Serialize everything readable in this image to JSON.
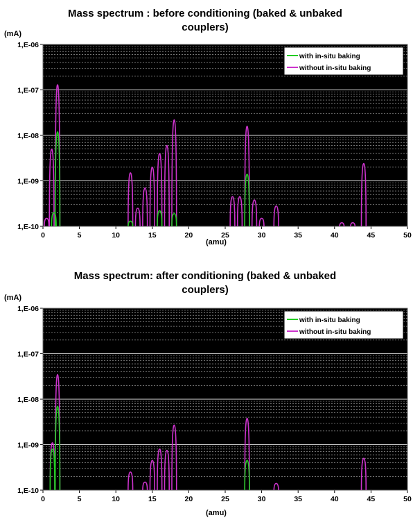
{
  "charts": [
    {
      "title_line1": "Mass spectrum : before conditioning (baked & unbaked",
      "title_line2": "couplers)",
      "y_unit": "(mA)",
      "x_unit": "(amu)"
    },
    {
      "title_line1": "Mass spectrum: after conditioning (baked & unbaked",
      "title_line2": "couplers)",
      "y_unit": "(mA)",
      "x_unit": "(amu)"
    }
  ],
  "legend": {
    "with": "with in-situ baking",
    "without": "without in-situ baking"
  },
  "colors": {
    "with": "#22cc22",
    "without": "#cc33cc",
    "plot_bg": "#000000",
    "grid": "#bbbbbb"
  },
  "chart_data": [
    {
      "type": "line",
      "title": "Mass spectrum : before conditioning (baked & unbaked couplers)",
      "xlabel": "(amu)",
      "ylabel": "(mA)",
      "xlim": [
        0,
        50
      ],
      "ylim": [
        1e-10,
        1e-06
      ],
      "y_scale": "log",
      "x_ticks": [
        "0",
        "5",
        "10",
        "15",
        "20",
        "25",
        "30",
        "35",
        "40",
        "45",
        "50"
      ],
      "y_ticks": [
        "1,E-10",
        "1,E-09",
        "1,E-08",
        "1,E-07",
        "1,E-06"
      ],
      "grid": true,
      "legend_position": "top-right",
      "series": [
        {
          "name": "with in-situ baking",
          "peaks": [
            [
              1.5,
              2e-10
            ],
            [
              2,
              1.2e-08
            ],
            [
              12,
              1.3e-10
            ],
            [
              16,
              2.2e-10
            ],
            [
              18,
              1.9e-10
            ],
            [
              28,
              1.4e-09
            ]
          ]
        },
        {
          "name": "without in-situ baking",
          "peaks": [
            [
              0.5,
              1.5e-10
            ],
            [
              1.2,
              5e-09
            ],
            [
              2,
              1.3e-07
            ],
            [
              12,
              1.5e-09
            ],
            [
              13,
              2.5e-10
            ],
            [
              14,
              7e-10
            ],
            [
              15,
              2e-09
            ],
            [
              16,
              4e-09
            ],
            [
              17,
              6e-09
            ],
            [
              18,
              2.2e-08
            ],
            [
              26,
              4.5e-10
            ],
            [
              27,
              4.5e-10
            ],
            [
              28,
              1.6e-08
            ],
            [
              29,
              3.8e-10
            ],
            [
              30,
              1.5e-10
            ],
            [
              32,
              2.8e-10
            ],
            [
              41,
              1.2e-10
            ],
            [
              42.5,
              1.2e-10
            ],
            [
              44,
              2.4e-09
            ]
          ]
        }
      ]
    },
    {
      "type": "line",
      "title": "Mass spectrum: after conditioning (baked & unbaked couplers)",
      "xlabel": "(amu)",
      "ylabel": "(mA)",
      "xlim": [
        0,
        50
      ],
      "ylim": [
        1e-10,
        1e-06
      ],
      "y_scale": "log",
      "x_ticks": [
        "0",
        "5",
        "10",
        "15",
        "20",
        "25",
        "30",
        "35",
        "40",
        "45",
        "50"
      ],
      "y_ticks": [
        "1,E-10",
        "1,E-09",
        "1,E-08",
        "1,E-07",
        "1,E-06"
      ],
      "grid": true,
      "legend_position": "top-right",
      "series": [
        {
          "name": "with in-situ baking",
          "peaks": [
            [
              1.3,
              8e-10
            ],
            [
              2,
              7e-09
            ],
            [
              28,
              4.5e-10
            ]
          ]
        },
        {
          "name": "without in-situ baking",
          "peaks": [
            [
              1.3,
              1.1e-09
            ],
            [
              2,
              3.5e-08
            ],
            [
              12,
              2.5e-10
            ],
            [
              14,
              1.5e-10
            ],
            [
              15,
              4.5e-10
            ],
            [
              16,
              8e-10
            ],
            [
              17,
              7.5e-10
            ],
            [
              18,
              2.7e-09
            ],
            [
              28,
              3.8e-09
            ],
            [
              32,
              1.4e-10
            ],
            [
              44,
              5e-10
            ]
          ]
        }
      ]
    }
  ]
}
